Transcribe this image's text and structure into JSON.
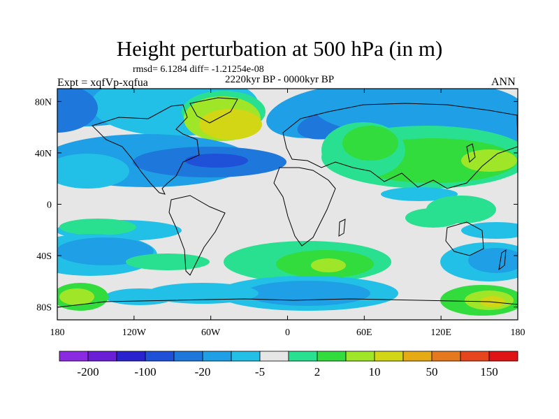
{
  "title": "Height perturbation at 500 hPa (in m)",
  "stats": "rmsd= 6.1284  diff= -1.21254e-08",
  "experiment": "Expt = xqfVp-xqfua",
  "period": "2220kyr BP - 0000kyr BP",
  "season": "ANN",
  "lat_ticks": [
    {
      "label": "80N",
      "lat": 80
    },
    {
      "label": "40N",
      "lat": 40
    },
    {
      "label": "0",
      "lat": 0
    },
    {
      "label": "40S",
      "lat": -40
    },
    {
      "label": "80S",
      "lat": -80
    }
  ],
  "lon_ticks": [
    {
      "label": "180",
      "lon": -180
    },
    {
      "label": "120W",
      "lon": -120
    },
    {
      "label": "60W",
      "lon": -60
    },
    {
      "label": "0",
      "lon": 0
    },
    {
      "label": "60E",
      "lon": 60
    },
    {
      "label": "120E",
      "lon": 120
    },
    {
      "label": "180",
      "lon": 180
    }
  ],
  "colorbar": {
    "colors": [
      "#8a2be2",
      "#6a1fd6",
      "#2a22cc",
      "#1e50d8",
      "#1e78dc",
      "#1fa0e6",
      "#22c0e6",
      "#e6e6e6",
      "#28e090",
      "#32dc3c",
      "#a0e628",
      "#d2d614",
      "#e6aa14",
      "#e6781e",
      "#e6461e",
      "#e01414"
    ],
    "labels": [
      {
        "text": "-200",
        "boundary": 1
      },
      {
        "text": "-100",
        "boundary": 3
      },
      {
        "text": "-20",
        "boundary": 5
      },
      {
        "text": "-5",
        "boundary": 7
      },
      {
        "text": "2",
        "boundary": 9
      },
      {
        "text": "10",
        "boundary": 11
      },
      {
        "text": "50",
        "boundary": 13
      },
      {
        "text": "150",
        "boundary": 15
      }
    ]
  },
  "field_colors": {
    "background": "#e6e6e6",
    "weak_neg": "#22c0e6",
    "mid_neg": "#1fa0e6",
    "strong_neg": "#1e78dc",
    "stronger_neg": "#1e50d8",
    "weak_pos": "#28e090",
    "mid_pos": "#32dc3c",
    "strong_pos": "#a0e628",
    "stronger_pos": "#d2d614"
  }
}
